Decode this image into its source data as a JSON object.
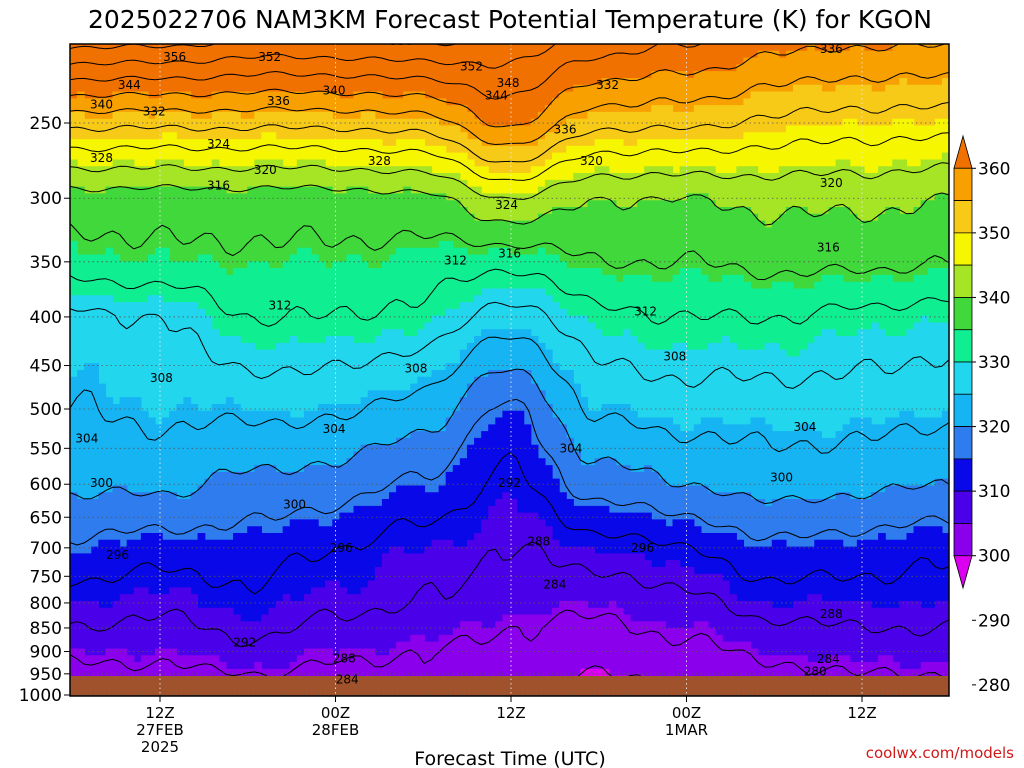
{
  "chart_data": {
    "type": "contour",
    "title": "2025022706 NAM3KM Forecast Potential Temperature (K) for KGON",
    "xlabel": "Forecast Time (UTC)",
    "ylabel": "",
    "credit": "coolwx.com/models",
    "x_ticks": [
      {
        "hour": 12,
        "lines": [
          "12Z",
          "27FEB",
          "2025"
        ]
      },
      {
        "hour": 24,
        "lines": [
          "00Z",
          "28FEB"
        ]
      },
      {
        "hour": 36,
        "lines": [
          "12Z"
        ]
      },
      {
        "hour": 48,
        "lines": [
          "00Z",
          "1MAR"
        ]
      },
      {
        "hour": 60,
        "lines": [
          "12Z"
        ]
      }
    ],
    "y_ticks": [
      250,
      300,
      350,
      400,
      450,
      500,
      550,
      600,
      650,
      700,
      750,
      800,
      850,
      900,
      950,
      1000
    ],
    "y_range_hPa": [
      200,
      1025
    ],
    "x_range_hours": [
      6,
      66
    ],
    "colorbar": {
      "levels": [
        280,
        290,
        300,
        310,
        320,
        330,
        340,
        350,
        360
      ],
      "colors": [
        "#dc00f0",
        "#8a00ec",
        "#4a00e8",
        "#0808e8",
        "#2e7ced",
        "#16b4f2",
        "#22d6ee",
        "#10ee92",
        "#40d83a",
        "#a6e426",
        "#f6f600",
        "#f8ca18",
        "#f8a000",
        "#f07000"
      ],
      "band_step": 5
    },
    "contour_interval": 4,
    "profiles": [
      {
        "hour": 6,
        "theta": [
          [
            1000,
            281
          ],
          [
            950,
            283
          ],
          [
            900,
            285
          ],
          [
            850,
            288
          ],
          [
            800,
            290
          ],
          [
            700,
            295
          ],
          [
            600,
            301
          ],
          [
            500,
            304
          ],
          [
            400,
            307
          ],
          [
            350,
            314
          ],
          [
            300,
            318
          ],
          [
            250,
            333
          ],
          [
            200,
            356
          ]
        ]
      },
      {
        "hour": 12,
        "theta": [
          [
            1000,
            281
          ],
          [
            950,
            283
          ],
          [
            900,
            285
          ],
          [
            850,
            287
          ],
          [
            800,
            289
          ],
          [
            700,
            294
          ],
          [
            600,
            301
          ],
          [
            500,
            305
          ],
          [
            400,
            308
          ],
          [
            350,
            315
          ],
          [
            300,
            318
          ],
          [
            250,
            333
          ],
          [
            200,
            356
          ]
        ]
      },
      {
        "hour": 18,
        "theta": [
          [
            1000,
            282
          ],
          [
            950,
            284
          ],
          [
            900,
            287
          ],
          [
            850,
            289
          ],
          [
            800,
            291
          ],
          [
            700,
            294
          ],
          [
            600,
            299
          ],
          [
            500,
            305
          ],
          [
            400,
            312
          ],
          [
            350,
            315
          ],
          [
            300,
            318
          ],
          [
            250,
            333
          ],
          [
            200,
            354
          ]
        ]
      },
      {
        "hour": 24,
        "theta": [
          [
            1000,
            281
          ],
          [
            950,
            283
          ],
          [
            900,
            285
          ],
          [
            850,
            287
          ],
          [
            800,
            289
          ],
          [
            700,
            292
          ],
          [
            600,
            298
          ],
          [
            500,
            305
          ],
          [
            400,
            312
          ],
          [
            350,
            315
          ],
          [
            300,
            318
          ],
          [
            250,
            333
          ],
          [
            200,
            354
          ]
        ]
      },
      {
        "hour": 30,
        "theta": [
          [
            1000,
            281
          ],
          [
            950,
            283
          ],
          [
            900,
            284
          ],
          [
            850,
            286
          ],
          [
            800,
            288
          ],
          [
            700,
            290
          ],
          [
            600,
            295
          ],
          [
            500,
            302
          ],
          [
            400,
            311
          ],
          [
            350,
            314
          ],
          [
            300,
            319
          ],
          [
            250,
            334
          ],
          [
            200,
            355
          ]
        ]
      },
      {
        "hour": 36,
        "theta": [
          [
            1000,
            280
          ],
          [
            950,
            281
          ],
          [
            900,
            283
          ],
          [
            850,
            284
          ],
          [
            800,
            286
          ],
          [
            700,
            288
          ],
          [
            600,
            291
          ],
          [
            500,
            295
          ],
          [
            400,
            306
          ],
          [
            350,
            313
          ],
          [
            300,
            324
          ],
          [
            250,
            341
          ],
          [
            200,
            352
          ]
        ]
      },
      {
        "hour": 42,
        "theta": [
          [
            1000,
            279
          ],
          [
            950,
            280
          ],
          [
            900,
            282
          ],
          [
            850,
            283
          ],
          [
            800,
            285
          ],
          [
            700,
            290
          ],
          [
            600,
            298
          ],
          [
            500,
            305
          ],
          [
            400,
            311
          ],
          [
            350,
            316
          ],
          [
            300,
            320
          ],
          [
            250,
            333
          ],
          [
            200,
            348
          ]
        ]
      },
      {
        "hour": 48,
        "theta": [
          [
            1000,
            280
          ],
          [
            950,
            281
          ],
          [
            900,
            283
          ],
          [
            850,
            285
          ],
          [
            800,
            287
          ],
          [
            700,
            292
          ],
          [
            600,
            300
          ],
          [
            500,
            306
          ],
          [
            400,
            312
          ],
          [
            350,
            316
          ],
          [
            300,
            320
          ],
          [
            250,
            333
          ],
          [
            200,
            346
          ]
        ]
      },
      {
        "hour": 54,
        "theta": [
          [
            1000,
            281
          ],
          [
            950,
            283
          ],
          [
            900,
            285
          ],
          [
            850,
            287
          ],
          [
            800,
            290
          ],
          [
            700,
            295
          ],
          [
            600,
            302
          ],
          [
            500,
            306
          ],
          [
            400,
            312
          ],
          [
            350,
            317
          ],
          [
            300,
            321
          ],
          [
            250,
            331
          ],
          [
            200,
            343
          ]
        ]
      },
      {
        "hour": 60,
        "theta": [
          [
            1000,
            282
          ],
          [
            950,
            284
          ],
          [
            900,
            286
          ],
          [
            850,
            288
          ],
          [
            800,
            290
          ],
          [
            700,
            294
          ],
          [
            600,
            301
          ],
          [
            500,
            306
          ],
          [
            400,
            311
          ],
          [
            350,
            317
          ],
          [
            300,
            321
          ],
          [
            250,
            330
          ],
          [
            200,
            342
          ]
        ]
      },
      {
        "hour": 66,
        "theta": [
          [
            1000,
            282
          ],
          [
            950,
            284
          ],
          [
            900,
            286
          ],
          [
            850,
            288
          ],
          [
            800,
            290
          ],
          [
            700,
            293
          ],
          [
            600,
            300
          ],
          [
            500,
            305
          ],
          [
            400,
            310
          ],
          [
            350,
            316
          ],
          [
            300,
            320
          ],
          [
            250,
            330
          ],
          [
            200,
            342
          ]
        ]
      }
    ],
    "contour_labels": [
      {
        "value": 356,
        "hour": 13.0,
        "hPa": 213
      },
      {
        "value": 352,
        "hour": 19.5,
        "hPa": 213
      },
      {
        "value": 356,
        "hour": 28.5,
        "hPa": 205
      },
      {
        "value": 352,
        "hour": 33.3,
        "hPa": 218
      },
      {
        "value": 344,
        "hour": 9.9,
        "hPa": 228
      },
      {
        "value": 348,
        "hour": 35.8,
        "hPa": 227
      },
      {
        "value": 344,
        "hour": 35.0,
        "hPa": 234
      },
      {
        "value": 340,
        "hour": 8.0,
        "hPa": 239
      },
      {
        "value": 332,
        "hour": 11.6,
        "hPa": 243
      },
      {
        "value": 336,
        "hour": 20.1,
        "hPa": 237
      },
      {
        "value": 340,
        "hour": 23.9,
        "hPa": 231
      },
      {
        "value": 332,
        "hour": 42.6,
        "hPa": 228
      },
      {
        "value": 336,
        "hour": 39.7,
        "hPa": 254
      },
      {
        "value": 336,
        "hour": 57.9,
        "hPa": 209
      },
      {
        "value": 324,
        "hour": 16.0,
        "hPa": 263
      },
      {
        "value": 328,
        "hour": 8.0,
        "hPa": 272
      },
      {
        "value": 320,
        "hour": 19.2,
        "hPa": 280
      },
      {
        "value": 328,
        "hour": 27.0,
        "hPa": 274
      },
      {
        "value": 320,
        "hour": 41.5,
        "hPa": 274
      },
      {
        "value": 316,
        "hour": 16.0,
        "hPa": 291
      },
      {
        "value": 320,
        "hour": 57.9,
        "hPa": 289
      },
      {
        "value": 324,
        "hour": 35.7,
        "hPa": 305
      },
      {
        "value": 316,
        "hour": 57.7,
        "hPa": 338
      },
      {
        "value": 312,
        "hour": 32.2,
        "hPa": 349
      },
      {
        "value": 316,
        "hour": 35.9,
        "hPa": 343
      },
      {
        "value": 312,
        "hour": 20.2,
        "hPa": 389
      },
      {
        "value": 312,
        "hour": 45.2,
        "hPa": 395
      },
      {
        "value": 308,
        "hour": 29.5,
        "hPa": 453
      },
      {
        "value": 308,
        "hour": 47.2,
        "hPa": 440
      },
      {
        "value": 308,
        "hour": 12.1,
        "hPa": 464
      },
      {
        "value": 304,
        "hour": 23.9,
        "hPa": 525
      },
      {
        "value": 304,
        "hour": 56.1,
        "hPa": 522
      },
      {
        "value": 304,
        "hour": 7.0,
        "hPa": 537
      },
      {
        "value": 304,
        "hour": 40.1,
        "hPa": 550
      },
      {
        "value": 300,
        "hour": 8.0,
        "hPa": 598
      },
      {
        "value": 300,
        "hour": 54.5,
        "hPa": 590
      },
      {
        "value": 292,
        "hour": 35.9,
        "hPa": 598
      },
      {
        "value": 300,
        "hour": 21.2,
        "hPa": 630
      },
      {
        "value": 288,
        "hour": 37.9,
        "hPa": 689
      },
      {
        "value": 296,
        "hour": 9.1,
        "hPa": 712
      },
      {
        "value": 296,
        "hour": 24.4,
        "hPa": 700
      },
      {
        "value": 296,
        "hour": 45.0,
        "hPa": 700
      },
      {
        "value": 284,
        "hour": 39.0,
        "hPa": 765
      },
      {
        "value": 288,
        "hour": 57.9,
        "hPa": 822
      },
      {
        "value": 292,
        "hour": 17.8,
        "hPa": 880
      },
      {
        "value": 288,
        "hour": 24.6,
        "hPa": 915
      },
      {
        "value": 284,
        "hour": 57.7,
        "hPa": 916
      },
      {
        "value": 280,
        "hour": 56.8,
        "hPa": 945
      },
      {
        "value": 284,
        "hour": 24.8,
        "hPa": 963
      }
    ]
  }
}
